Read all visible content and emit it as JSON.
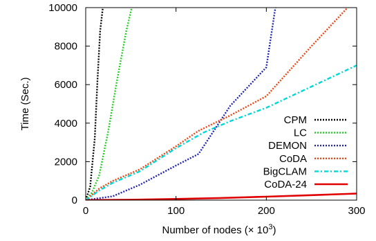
{
  "chart_data": {
    "type": "line",
    "xlabel": "Number of nodes (",
    "xlabel_unit": "× 10",
    "xlabel_exp": "3",
    "xlabel_close": ")",
    "ylabel": "Time (Sec.)",
    "xlim": [
      0,
      300
    ],
    "ylim": [
      0,
      10000
    ],
    "xticks": [
      0,
      100,
      200,
      300
    ],
    "yticks": [
      0,
      2000,
      4000,
      6000,
      8000,
      10000
    ],
    "grid": false,
    "legend_placement": "bottom-right",
    "series": [
      {
        "name": "CPM",
        "color": "#000000",
        "dash": "2,2",
        "x": [
          0,
          5,
          10,
          13,
          16,
          19
        ],
        "y": [
          0,
          700,
          3200,
          6200,
          8800,
          10000
        ]
      },
      {
        "name": "LC",
        "color": "#22cc22",
        "dash": "2,2",
        "x": [
          0,
          7,
          15,
          25,
          35,
          45,
          51
        ],
        "y": [
          0,
          400,
          1300,
          3600,
          6300,
          8800,
          10000
        ]
      },
      {
        "name": "DEMON",
        "color": "#1f24b4",
        "dash": "2,2",
        "x": [
          0,
          30,
          60,
          100,
          125,
          160,
          200,
          210
        ],
        "y": [
          0,
          200,
          800,
          1800,
          2400,
          4900,
          6900,
          10000
        ]
      },
      {
        "name": "CoDA",
        "color": "#ee4411",
        "dash": "2,2",
        "x": [
          0,
          15,
          30,
          60,
          100,
          125,
          160,
          200,
          250,
          290
        ],
        "y": [
          0,
          600,
          1000,
          1600,
          2800,
          3600,
          4400,
          5400,
          8000,
          10000
        ]
      },
      {
        "name": "BigCLAM",
        "color": "#00d8d8",
        "dash": "6,3,2,3",
        "x": [
          0,
          15,
          30,
          60,
          100,
          130,
          160,
          200,
          250,
          300
        ],
        "y": [
          0,
          500,
          900,
          1500,
          2700,
          3500,
          4100,
          4800,
          5900,
          7000
        ]
      },
      {
        "name": "CoDA-24",
        "color": "#e00000",
        "dash": "",
        "x": [
          0,
          50,
          100,
          150,
          200,
          250,
          300
        ],
        "y": [
          0,
          20,
          60,
          110,
          180,
          260,
          340
        ]
      }
    ]
  }
}
